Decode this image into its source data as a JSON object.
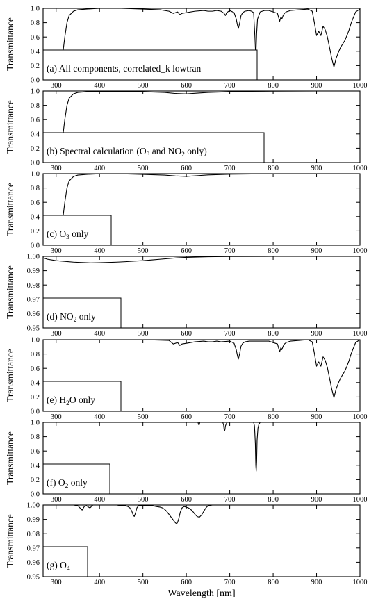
{
  "figure": {
    "xlabel": "Wavelength [nm]",
    "ylabel": "Transmittance"
  },
  "chart_data": [
    {
      "id": "a",
      "type": "line",
      "label": [
        "(a) All components, correlated_k lowtran"
      ],
      "xlim": [
        270,
        1000
      ],
      "ylim": [
        0.0,
        1.0
      ],
      "xticks": [
        300,
        400,
        500,
        600,
        700,
        800,
        900,
        1000
      ],
      "yticks": [
        0.0,
        0.2,
        0.4,
        0.6,
        0.8,
        1.0
      ],
      "ytick_labels": [
        "0.0",
        "0.2",
        "0.4",
        "0.6",
        "0.8",
        "1.0"
      ],
      "series": [
        {
          "x": [
            270,
            300,
            305,
            310,
            315,
            320,
            325,
            330,
            340,
            350,
            370,
            400,
            450,
            500,
            540,
            560,
            570,
            580,
            585,
            590,
            600,
            620,
            640,
            650,
            660,
            670,
            680,
            687,
            690,
            693,
            700,
            710,
            715,
            718,
            720,
            723,
            726,
            730,
            735,
            745,
            750,
            755,
            758,
            760,
            762,
            764,
            767,
            770,
            780,
            790,
            800,
            810,
            815,
            818,
            820,
            823,
            826,
            830,
            840,
            860,
            880,
            890,
            895,
            900,
            905,
            910,
            915,
            920,
            925,
            930,
            935,
            940,
            945,
            950,
            955,
            960,
            965,
            970,
            975,
            980,
            990,
            1000
          ],
          "y": [
            0.0,
            0.0,
            0.0,
            0.08,
            0.35,
            0.6,
            0.8,
            0.9,
            0.96,
            0.98,
            0.99,
            1.0,
            1.0,
            0.99,
            0.98,
            0.96,
            0.93,
            0.95,
            0.91,
            0.93,
            0.94,
            0.96,
            0.97,
            0.96,
            0.96,
            0.97,
            0.96,
            0.93,
            0.9,
            0.94,
            0.97,
            0.94,
            0.85,
            0.76,
            0.72,
            0.8,
            0.9,
            0.94,
            0.96,
            0.97,
            0.96,
            0.94,
            0.6,
            0.3,
            0.65,
            0.85,
            0.9,
            0.95,
            0.97,
            0.97,
            0.95,
            0.93,
            0.82,
            0.88,
            0.85,
            0.9,
            0.93,
            0.95,
            0.97,
            0.98,
            0.99,
            0.96,
            0.8,
            0.62,
            0.68,
            0.62,
            0.75,
            0.7,
            0.6,
            0.45,
            0.3,
            0.18,
            0.3,
            0.38,
            0.45,
            0.5,
            0.55,
            0.62,
            0.7,
            0.8,
            0.95,
            0.99
          ]
        }
      ]
    },
    {
      "id": "b",
      "type": "line",
      "label": [
        "(b) Spectral calculation (O",
        "3",
        " and NO",
        "2",
        " only)"
      ],
      "xlim": [
        270,
        1000
      ],
      "ylim": [
        0.0,
        1.0
      ],
      "xticks": [
        300,
        400,
        500,
        600,
        700,
        800,
        900,
        1000
      ],
      "yticks": [
        0.0,
        0.2,
        0.4,
        0.6,
        0.8,
        1.0
      ],
      "ytick_labels": [
        "0.0",
        "0.2",
        "0.4",
        "0.6",
        "0.8",
        "1.0"
      ],
      "series": [
        {
          "x": [
            270,
            300,
            305,
            310,
            315,
            320,
            325,
            330,
            340,
            350,
            370,
            400,
            450,
            500,
            550,
            575,
            600,
            625,
            650,
            700,
            750,
            800,
            900,
            1000
          ],
          "y": [
            0.0,
            0.0,
            0.0,
            0.08,
            0.35,
            0.6,
            0.8,
            0.9,
            0.96,
            0.98,
            0.99,
            0.995,
            0.995,
            0.99,
            0.98,
            0.965,
            0.96,
            0.97,
            0.98,
            0.99,
            0.995,
            0.998,
            1.0,
            1.0
          ]
        }
      ]
    },
    {
      "id": "c",
      "type": "line",
      "label": [
        "(c) O",
        "3",
        " only"
      ],
      "xlim": [
        270,
        1000
      ],
      "ylim": [
        0.0,
        1.0
      ],
      "xticks": [
        300,
        400,
        500,
        600,
        700,
        800,
        900,
        1000
      ],
      "yticks": [
        0.0,
        0.2,
        0.4,
        0.6,
        0.8,
        1.0
      ],
      "ytick_labels": [
        "0.0",
        "0.2",
        "0.4",
        "0.6",
        "0.8",
        "1.0"
      ],
      "series": [
        {
          "x": [
            270,
            300,
            305,
            310,
            315,
            320,
            325,
            330,
            340,
            350,
            370,
            400,
            450,
            500,
            550,
            575,
            600,
            625,
            650,
            700,
            750,
            800,
            900,
            1000
          ],
          "y": [
            0.0,
            0.0,
            0.0,
            0.08,
            0.35,
            0.6,
            0.8,
            0.9,
            0.96,
            0.98,
            0.99,
            0.998,
            0.998,
            0.99,
            0.98,
            0.968,
            0.962,
            0.972,
            0.982,
            0.992,
            0.996,
            0.998,
            1.0,
            1.0
          ]
        }
      ]
    },
    {
      "id": "d",
      "type": "line",
      "label": [
        "(d) NO",
        "2",
        " only"
      ],
      "xlim": [
        270,
        1000
      ],
      "ylim": [
        0.95,
        1.0
      ],
      "xticks": [
        300,
        400,
        500,
        600,
        700,
        800,
        900,
        1000
      ],
      "yticks": [
        0.95,
        0.96,
        0.97,
        0.98,
        0.99,
        1.0
      ],
      "ytick_labels": [
        "0.95",
        "0.96",
        "0.97",
        "0.98",
        "0.99",
        "1.00"
      ],
      "series": [
        {
          "x": [
            270,
            280,
            300,
            320,
            340,
            360,
            380,
            400,
            420,
            440,
            460,
            480,
            500,
            520,
            540,
            560,
            580,
            600,
            620,
            650,
            700,
            800,
            1000
          ],
          "y": [
            0.999,
            0.998,
            0.997,
            0.9965,
            0.996,
            0.9957,
            0.9955,
            0.9956,
            0.9958,
            0.996,
            0.9963,
            0.9967,
            0.997,
            0.9975,
            0.998,
            0.9985,
            0.999,
            0.9993,
            0.9995,
            0.9997,
            0.9999,
            1.0,
            1.0
          ]
        }
      ]
    },
    {
      "id": "e",
      "type": "line",
      "label": [
        "(e) H",
        "2",
        "O only"
      ],
      "xlim": [
        270,
        1000
      ],
      "ylim": [
        0.0,
        1.0
      ],
      "xticks": [
        300,
        400,
        500,
        600,
        700,
        800,
        900,
        1000
      ],
      "yticks": [
        0.0,
        0.2,
        0.4,
        0.6,
        0.8,
        1.0
      ],
      "ytick_labels": [
        "0.0",
        "0.2",
        "0.4",
        "0.6",
        "0.8",
        "1.0"
      ],
      "series": [
        {
          "x": [
            270,
            500,
            560,
            570,
            580,
            585,
            590,
            600,
            620,
            640,
            650,
            660,
            670,
            680,
            700,
            710,
            715,
            718,
            720,
            723,
            726,
            730,
            735,
            745,
            760,
            780,
            790,
            800,
            810,
            815,
            818,
            820,
            823,
            826,
            830,
            840,
            860,
            880,
            890,
            895,
            900,
            905,
            910,
            915,
            920,
            925,
            930,
            935,
            940,
            945,
            950,
            955,
            960,
            965,
            970,
            975,
            980,
            990,
            1000
          ],
          "y": [
            1.0,
            1.0,
            0.99,
            0.94,
            0.96,
            0.92,
            0.94,
            0.95,
            0.97,
            0.98,
            0.97,
            0.97,
            0.98,
            0.97,
            0.98,
            0.95,
            0.86,
            0.77,
            0.73,
            0.81,
            0.91,
            0.95,
            0.97,
            0.98,
            0.98,
            0.98,
            0.98,
            0.96,
            0.94,
            0.83,
            0.89,
            0.86,
            0.91,
            0.94,
            0.96,
            0.98,
            0.99,
            1.0,
            0.97,
            0.81,
            0.63,
            0.69,
            0.63,
            0.76,
            0.71,
            0.61,
            0.46,
            0.31,
            0.19,
            0.31,
            0.39,
            0.46,
            0.51,
            0.56,
            0.63,
            0.71,
            0.81,
            0.96,
            1.0
          ]
        }
      ]
    },
    {
      "id": "f",
      "type": "line",
      "label": [
        "(f) O",
        "2",
        " only"
      ],
      "xlim": [
        270,
        1000
      ],
      "ylim": [
        0.0,
        1.0
      ],
      "xticks": [
        300,
        400,
        500,
        600,
        700,
        800,
        900,
        1000
      ],
      "yticks": [
        0.0,
        0.2,
        0.4,
        0.6,
        0.8,
        1.0
      ],
      "ytick_labels": [
        "0.0",
        "0.2",
        "0.4",
        "0.6",
        "0.8",
        "1.0"
      ],
      "series": [
        {
          "x": [
            270,
            600,
            627,
            628,
            630,
            631,
            684,
            686,
            687,
            688,
            689,
            690,
            692,
            694,
            755,
            757,
            759,
            760,
            761,
            762,
            763,
            765,
            767,
            770,
            1000
          ],
          "y": [
            1.0,
            1.0,
            1.0,
            0.97,
            0.97,
            1.0,
            1.0,
            0.96,
            0.9,
            0.88,
            0.9,
            0.95,
            0.98,
            1.0,
            1.0,
            0.95,
            0.7,
            0.4,
            0.32,
            0.45,
            0.75,
            0.92,
            0.97,
            1.0,
            1.0
          ]
        }
      ]
    },
    {
      "id": "g",
      "type": "line",
      "label": [
        "(g) O",
        "4"
      ],
      "xlim": [
        270,
        1000
      ],
      "ylim": [
        0.95,
        1.0
      ],
      "xticks": [
        300,
        400,
        500,
        600,
        700,
        800,
        900,
        1000
      ],
      "yticks": [
        0.95,
        0.96,
        0.97,
        0.98,
        0.99,
        1.0
      ],
      "ytick_labels": [
        "0.95",
        "0.96",
        "0.97",
        "0.98",
        "0.99",
        "1.00"
      ],
      "series": [
        {
          "x": [
            270,
            340,
            350,
            355,
            358,
            360,
            362,
            365,
            370,
            375,
            378,
            380,
            382,
            385,
            440,
            445,
            450,
            455,
            460,
            465,
            470,
            474,
            477,
            480,
            483,
            486,
            490,
            520,
            530,
            540,
            545,
            550,
            555,
            560,
            565,
            570,
            575,
            578,
            580,
            583,
            586,
            590,
            595,
            600,
            605,
            610,
            615,
            620,
            625,
            630,
            635,
            640,
            645,
            650,
            660,
            1000
          ],
          "y": [
            1.0,
            1.0,
            0.9995,
            0.998,
            0.997,
            0.9965,
            0.9975,
            0.999,
            0.9995,
            0.9985,
            0.998,
            0.9985,
            0.9995,
            1.0,
            1.0,
            0.9997,
            0.9995,
            0.9998,
            0.9995,
            0.999,
            0.998,
            0.996,
            0.9935,
            0.992,
            0.9945,
            0.998,
            0.9995,
            0.9997,
            0.999,
            0.9985,
            0.998,
            0.997,
            0.9955,
            0.9935,
            0.9915,
            0.9895,
            0.9875,
            0.987,
            0.988,
            0.991,
            0.995,
            0.998,
            0.999,
            0.9985,
            0.998,
            0.997,
            0.9955,
            0.9935,
            0.992,
            0.9915,
            0.993,
            0.9955,
            0.998,
            0.9995,
            1.0,
            1.0
          ]
        }
      ]
    }
  ]
}
